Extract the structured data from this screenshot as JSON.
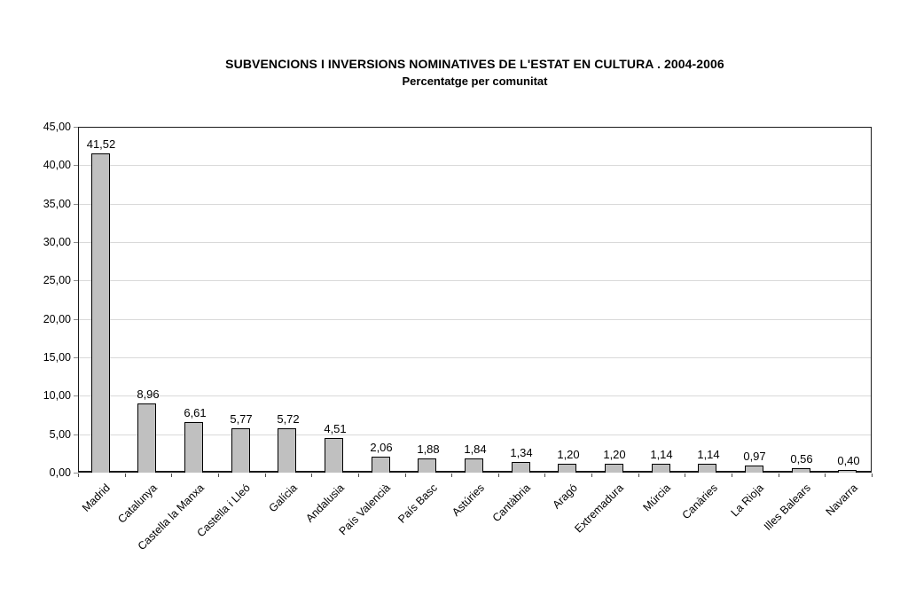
{
  "chart": {
    "title": "SUBVENCIONS I INVERSIONS NOMINATIVES DE L'ESTAT EN CULTURA . 2004-2006",
    "subtitle": "Percentatge per comunitat"
  },
  "chart_data": {
    "type": "bar",
    "title": "SUBVENCIONS I INVERSIONS NOMINATIVES DE L'ESTAT EN CULTURA . 2004-2006",
    "subtitle": "Percentatge per comunitat",
    "categories": [
      "Madrid",
      "Catalunya",
      "Castella la Manxa",
      "Castella i Lleó",
      "Galícia",
      "Andalusia",
      "País Valencià",
      "País Basc",
      "Astúries",
      "Cantàbria",
      "Aragó",
      "Extremadura",
      "Múrcia",
      "Canàries",
      "La Rioja",
      "Illes Balears",
      "Navarra"
    ],
    "values": [
      41.52,
      8.96,
      6.61,
      5.77,
      5.72,
      4.51,
      2.06,
      1.88,
      1.84,
      1.34,
      1.2,
      1.2,
      1.14,
      1.14,
      0.97,
      0.56,
      0.4
    ],
    "value_labels": [
      "41,52",
      "8,96",
      "6,61",
      "5,77",
      "5,72",
      "4,51",
      "2,06",
      "1,88",
      "1,84",
      "1,34",
      "1,20",
      "1,20",
      "1,14",
      "1,14",
      "0,97",
      "0,56",
      "0,40"
    ],
    "xlabel": "",
    "ylabel": "",
    "ylim": [
      0,
      45
    ],
    "ytick_step": 5,
    "ytick_labels": [
      "0,00",
      "5,00",
      "10,00",
      "15,00",
      "20,00",
      "25,00",
      "30,00",
      "35,00",
      "40,00",
      "45,00"
    ],
    "grid": true,
    "legend": "none",
    "bar_fill_color": "#c0c0c0",
    "bar_border_color": "#000000",
    "gridline_color": "#d9d9d9"
  }
}
